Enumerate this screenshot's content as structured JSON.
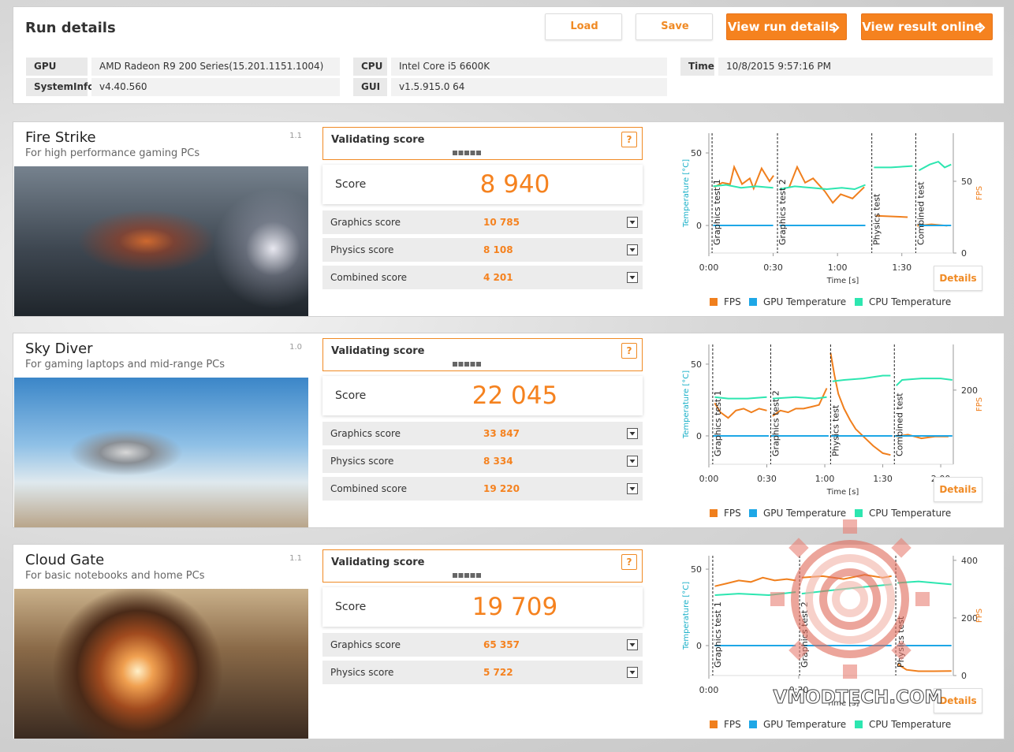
{
  "header": {
    "title": "Run details",
    "buttons": [
      "Load",
      "Save",
      "View run details",
      "View result online"
    ]
  },
  "system_info": {
    "rows": [
      [
        "GPU",
        "AMD Radeon R9 200 Series(15.201.1151.1004)"
      ],
      [
        "SystemInfo",
        "v4.40.560"
      ],
      [
        "CPU",
        "Intel Core i5 6600K"
      ],
      [
        "GUI",
        "v1.5.915.0 64"
      ],
      [
        "Time",
        "10/8/2015 9:57:16 PM"
      ]
    ]
  },
  "benchmarks": [
    {
      "name": "Fire Strike",
      "subtitle": "For high performance gaming PCs",
      "version": "1.1",
      "validating": "Validating score",
      "help": "?",
      "score_label": "Score",
      "score": "8 940",
      "subscores": [
        {
          "label": "Graphics score",
          "value": "10 785"
        },
        {
          "label": "Physics score",
          "value": "8 108"
        },
        {
          "label": "Combined score",
          "value": "4 201"
        }
      ],
      "details": "Details",
      "chart": {
        "type": "line",
        "y_label": "Temperature [°C]",
        "y2_label": "FPS",
        "x_label": "Time [s]",
        "xlim": [
          0,
          114
        ],
        "ylim": [
          -19,
          63.6
        ],
        "y2lim": [
          0,
          83.5
        ],
        "xticks": [
          {
            "value": 0,
            "label": "0:00"
          },
          {
            "value": 30,
            "label": "0:30"
          },
          {
            "value": 60,
            "label": "1:00"
          },
          {
            "value": 90,
            "label": "1:30"
          }
        ],
        "yticks": [
          0,
          50
        ],
        "y2ticks": [
          0,
          50
        ],
        "sections": [
          {
            "x": 1.5,
            "label": "Graphics test 1"
          },
          {
            "x": 32,
            "label": "Graphics test 2"
          },
          {
            "x": 76,
            "label": "Physics test"
          },
          {
            "x": 96.5,
            "label": "Combined test"
          }
        ],
        "series": [
          {
            "name": "FPS",
            "color": "#f07f1d",
            "axis": "y2",
            "x": [
              2.6,
              6.3,
              9.9,
              11.8,
              15.5,
              19.1,
              20.9,
              24.6,
              28.3,
              30.2,
              31,
              37.5,
              41.2,
              44.9,
              48.6,
              54.1,
              57.8,
              61.5,
              67,
              72.5,
              75,
              78,
              92.7,
              95,
              97.2,
              103.8,
              111.2
            ],
            "values": [
              46,
              49,
              48,
              60,
              48,
              52,
              45,
              59,
              50,
              54,
              null,
              46,
              60,
              49,
              52,
              43,
              35,
              41,
              38,
              46,
              null,
              26,
              25,
              null,
              19,
              20,
              19
            ]
          },
          {
            "name": "GPU Temperature",
            "color": "#1ea7e6",
            "x": [
              2,
              30,
              31,
              33,
              73,
              86,
              98,
              113
            ],
            "values": [
              0,
              0,
              null,
              0,
              0,
              null,
              0,
              0
            ]
          },
          {
            "name": "CPU Temperature",
            "color": "#2de6b0",
            "x": [
              2,
              8,
              15,
              22,
              30,
              31,
              33,
              40,
              48,
              55,
              62,
              68,
              73,
              75,
              77,
              85,
              95,
              96,
              98,
              103,
              107,
              110,
              113
            ],
            "values": [
              27,
              28,
              26,
              27,
              26,
              null,
              25,
              27,
              26,
              25,
              26,
              25,
              28,
              null,
              40,
              40,
              41,
              null,
              38,
              42,
              44,
              40,
              42
            ]
          }
        ]
      }
    },
    {
      "name": "Sky Diver",
      "subtitle": "For gaming laptops and mid-range PCs",
      "version": "1.0",
      "validating": "Validating score",
      "help": "?",
      "score_label": "Score",
      "score": "22 045",
      "subscores": [
        {
          "label": "Graphics score",
          "value": "33 847"
        },
        {
          "label": "Physics score",
          "value": "8 334"
        },
        {
          "label": "Combined score",
          "value": "19 220"
        }
      ],
      "details": "Details",
      "chart": {
        "type": "line",
        "y_label": "Temperature [°C]",
        "y2_label": "FPS",
        "x_label": "Time [s]",
        "xlim": [
          0,
          126.5
        ],
        "ylim": [
          -19.8,
          63.7
        ],
        "y2lim": [
          0,
          323
        ],
        "xticks": [
          {
            "value": 0,
            "label": "0:00"
          },
          {
            "value": 30,
            "label": "0:30"
          },
          {
            "value": 60,
            "label": "1:00"
          },
          {
            "value": 90,
            "label": "1:30"
          },
          {
            "value": 120,
            "label": "2:00"
          }
        ],
        "yticks": [
          0,
          50
        ],
        "y2ticks": [
          200
        ],
        "sections": [
          {
            "x": 2,
            "label": "Graphics test 1"
          },
          {
            "x": 32,
            "label": "Graphics test 2"
          },
          {
            "x": 63,
            "label": "Physics test"
          },
          {
            "x": 96,
            "label": "Combined test"
          }
        ],
        "series": [
          {
            "name": "FPS",
            "color": "#f07f1d",
            "axis": "y2",
            "x": [
              3,
              6,
              10,
              14,
              18,
              22,
              26,
              30,
              31,
              33,
              37,
              41,
              45,
              49,
              53,
              57,
              61,
              62,
              63,
              65,
              67,
              70,
              73,
              76,
              80,
              85,
              90,
              94,
              95,
              97,
              103,
              110,
              117,
              124
            ],
            "values": [
              165,
              140,
              125,
              145,
              150,
              140,
              150,
              145,
              null,
              130,
              145,
              140,
              150,
              150,
              155,
              160,
              205,
              null,
              300,
              240,
              190,
              150,
              120,
              95,
              75,
              50,
              30,
              25,
              null,
              75,
              80,
              70,
              75,
              75
            ]
          },
          {
            "name": "GPU Temperature",
            "color": "#1ea7e6",
            "x": [
              2,
              31,
              31.5,
              32,
              62,
              62.5,
              63,
              95,
              95.5,
              96,
              126
            ],
            "values": [
              0,
              0,
              null,
              0,
              0,
              null,
              0,
              0,
              null,
              0,
              0
            ]
          },
          {
            "name": "CPU Temperature",
            "color": "#2de6b0",
            "x": [
              3,
              10,
              20,
              30,
              31,
              33,
              45,
              55,
              61,
              62,
              64,
              70,
              80,
              90,
              94,
              95,
              97,
              100,
              110,
              120,
              126
            ],
            "values": [
              27,
              26,
              26,
              27,
              null,
              26,
              27,
              26,
              27,
              null,
              38,
              39,
              40,
              42,
              42,
              null,
              35,
              39,
              40,
              40,
              39
            ]
          }
        ]
      }
    },
    {
      "name": "Cloud Gate",
      "subtitle": "For basic notebooks and home PCs",
      "version": "1.1",
      "validating": "Validating score",
      "help": "?",
      "score_label": "Score",
      "score": "19 709",
      "subscores": [
        {
          "label": "Graphics score",
          "value": "65 357"
        },
        {
          "label": "Physics score",
          "value": "5 722"
        }
      ],
      "details": "Details",
      "chart": {
        "type": "line",
        "y_label": "Temperature [°C]",
        "y2_label": "FPS",
        "x_label": "Time [s]",
        "xlim": [
          0,
          81.6
        ],
        "ylim": [
          -19.6,
          58.8
        ],
        "y2lim": [
          0,
          416
        ],
        "xticks": [
          {
            "value": 0,
            "label": "0:00"
          },
          {
            "value": 30,
            "label": "0:30"
          }
        ],
        "yticks": [
          0,
          50
        ],
        "y2ticks": [
          0,
          200,
          400
        ],
        "sections": [
          {
            "x": 1.3,
            "label": "Graphics test 1"
          },
          {
            "x": 30.3,
            "label": "Graphics test 2"
          },
          {
            "x": 62.4,
            "label": "Physics test"
          }
        ],
        "series": [
          {
            "name": "FPS",
            "color": "#f07f1d",
            "axis": "y2",
            "x": [
              2,
              6,
              10,
              14,
              18,
              22,
              26,
              29,
              30,
              31,
              38,
              45,
              52,
              58,
              61,
              62,
              63,
              66,
              70,
              75,
              81
            ],
            "values": [
              310,
              320,
              330,
              325,
              340,
              330,
              335,
              330,
              null,
              340,
              345,
              335,
              350,
              340,
              345,
              null,
              40,
              20,
              15,
              15,
              16
            ]
          },
          {
            "name": "GPU Temperature",
            "color": "#1ea7e6",
            "x": [
              2,
              29,
              30,
              31,
              61,
              62,
              63,
              81
            ],
            "values": [
              0,
              0,
              null,
              0,
              0,
              null,
              0,
              0
            ]
          },
          {
            "name": "CPU Temperature",
            "color": "#2de6b0",
            "x": [
              2,
              10,
              20,
              29,
              30,
              31,
              40,
              50,
              61,
              62,
              63,
              70,
              81
            ],
            "values": [
              33,
              34,
              33,
              35,
              null,
              34,
              36,
              38,
              40,
              null,
              41,
              42,
              40
            ]
          }
        ]
      }
    }
  ],
  "watermark": "VMODTECH.COM"
}
